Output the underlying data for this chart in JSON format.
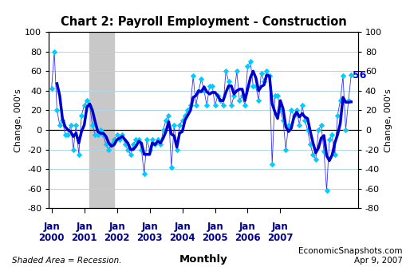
{
  "title": "Chart 2: Payroll Employment - Construction",
  "ylabel_left": "Change, 000's",
  "ylabel_right": "Change, 000's",
  "ylim": [
    -80,
    100
  ],
  "yticks": [
    -80,
    -60,
    -40,
    -20,
    0,
    20,
    40,
    60,
    80,
    100
  ],
  "recession_start_idx": 14,
  "recession_end_idx": 23,
  "annotation_value": "56",
  "annotation_color": "#0000CC",
  "monthly_color": "#00CCFF",
  "ma_color": "#0000CC",
  "line_color": "#3333FF",
  "background_color": "#FFFFFF",
  "grid_color": "#ADD8E6",
  "recession_color": "#C8C8C8",
  "footer_left": "Shaded Area = Recession.",
  "footer_center": "Monthly",
  "footer_right": "EconomicSnapshots.com\nApr 9, 2007",
  "monthly_data": [
    42,
    80,
    20,
    5,
    10,
    -5,
    -5,
    5,
    -20,
    5,
    -25,
    15,
    25,
    30,
    25,
    5,
    -5,
    -5,
    0,
    -5,
    -15,
    -20,
    -15,
    -10,
    -5,
    -10,
    -5,
    -15,
    -20,
    -25,
    -15,
    -10,
    -10,
    -20,
    -45,
    -10,
    -20,
    -10,
    -15,
    -10,
    -15,
    0,
    10,
    15,
    -38,
    5,
    -20,
    5,
    10,
    15,
    20,
    25,
    55,
    25,
    40,
    52,
    40,
    25,
    45,
    45,
    25,
    35,
    30,
    25,
    60,
    50,
    25,
    35,
    60,
    30,
    35,
    25,
    65,
    70,
    45,
    45,
    30,
    58,
    50,
    60,
    55,
    -35,
    35,
    35,
    20,
    10,
    -20,
    5,
    20,
    15,
    20,
    5,
    25,
    10,
    0,
    -15,
    -25,
    -30,
    0,
    5,
    -22,
    -62,
    -10,
    -5,
    -25,
    15,
    30,
    55,
    0,
    30,
    56
  ],
  "xtick_positions": [
    0,
    12,
    24,
    36,
    48,
    60,
    72,
    84
  ],
  "xtick_labels_line1": [
    "Jan",
    "Jan",
    "Jan",
    "Jan",
    "Jan",
    "Jan",
    "Jan",
    "Jan"
  ],
  "xtick_labels_line2": [
    "2000",
    "2001",
    "2002",
    "2003",
    "2004",
    "2005",
    "2006",
    "2007"
  ]
}
